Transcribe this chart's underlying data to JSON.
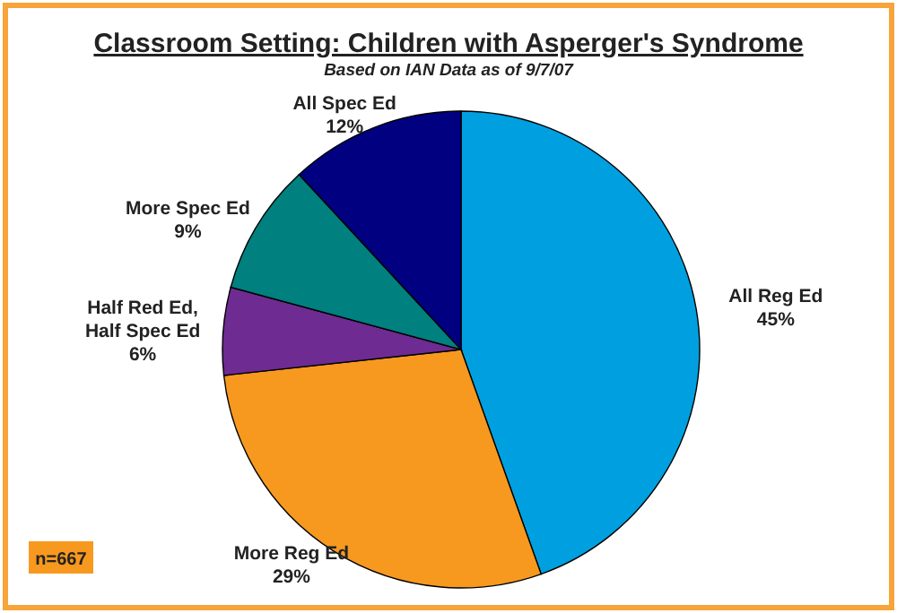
{
  "chart_data": {
    "type": "pie",
    "title": "Classroom Setting: Children with Asperger's Syndrome",
    "subtitle": "Based on IAN Data as of 9/7/07",
    "categories": [
      "All Reg Ed",
      "More Reg Ed",
      "Half Red Ed, Half Spec Ed",
      "More Spec Ed",
      "All Spec Ed"
    ],
    "values": [
      45,
      29,
      6,
      9,
      12
    ],
    "colors": [
      "#00a0e0",
      "#f7991f",
      "#6e2b91",
      "#00807f",
      "#000080"
    ],
    "value_labels": [
      "45%",
      "29%",
      "6%",
      "9%",
      "12%"
    ],
    "annotations": [
      "n=667"
    ]
  }
}
